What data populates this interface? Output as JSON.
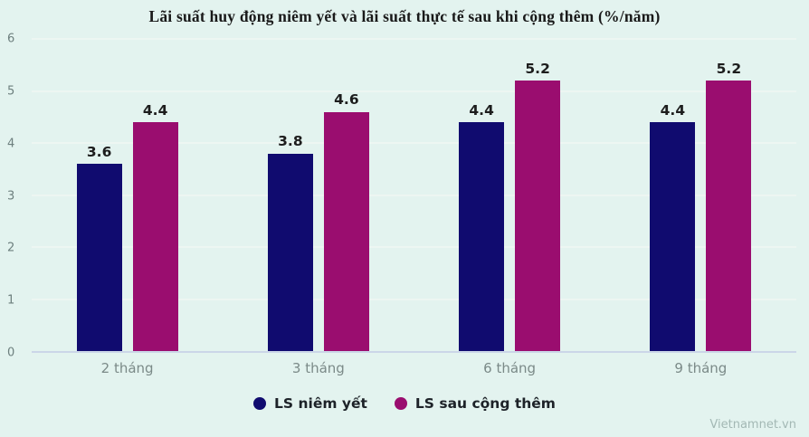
{
  "chart_data": {
    "type": "bar",
    "title": "Lãi suất huy động niêm yết và lãi suất thực tế sau khi cộng thêm (%/năm)",
    "categories": [
      "2 tháng",
      "3 tháng",
      "6 tháng",
      "9 tháng"
    ],
    "series": [
      {
        "name": "LS niêm yết",
        "color": "#100b6f",
        "values": [
          3.6,
          3.8,
          4.4,
          4.4
        ]
      },
      {
        "name": "LS sau cộng thêm",
        "color": "#9a0d6f",
        "values": [
          4.4,
          4.6,
          5.2,
          5.2
        ]
      }
    ],
    "xlabel": "",
    "ylabel": "",
    "ylim": [
      0,
      6
    ],
    "yticks": [
      0,
      1,
      2,
      3,
      4,
      5,
      6
    ],
    "grid": true,
    "legend_position": "bottom",
    "value_labels": true
  },
  "watermark": "Vietnamnet.vn",
  "colors": {
    "background": "#e3f3ef",
    "grid": "#edf6f2",
    "baseline": "#cbd6e8",
    "tick_text": "#6d7f7e",
    "category_text": "#7b8a88",
    "value_text": "#1d1d1d",
    "title_text": "#191919",
    "legend_text": "#1d2228",
    "watermark_text": "#a3b8b4",
    "series_navy": "#100b6f",
    "series_magenta": "#9a0d6f"
  }
}
